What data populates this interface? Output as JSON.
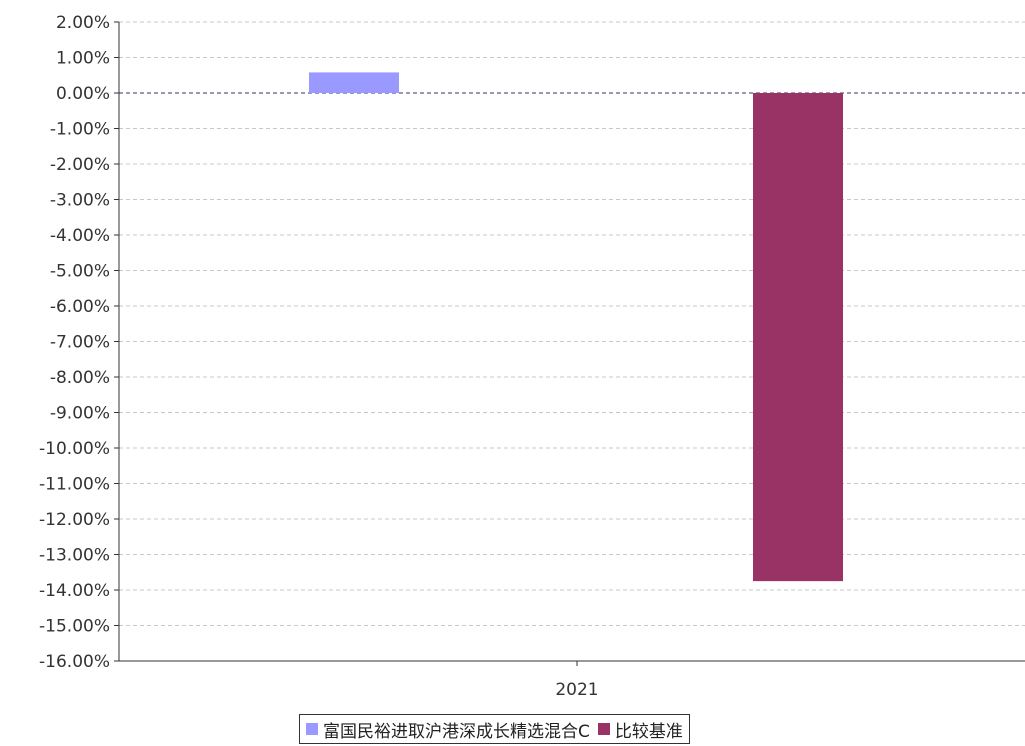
{
  "chart_data": {
    "type": "bar",
    "categories": [
      "2021"
    ],
    "series": [
      {
        "name": "富国民裕进取沪港深成长精选混合C",
        "values": [
          0.58
        ],
        "color": "#9999ff"
      },
      {
        "name": "比较基准",
        "values": [
          -13.75
        ],
        "color": "#993366"
      }
    ],
    "ylim": [
      -16,
      2
    ],
    "yticks": [
      2,
      1,
      0,
      -1,
      -2,
      -3,
      -4,
      -5,
      -6,
      -7,
      -8,
      -9,
      -10,
      -11,
      -12,
      -13,
      -14,
      -15,
      -16
    ],
    "ytick_labels": [
      "2.00%",
      "1.00%",
      "0.00%",
      "-1.00%",
      "-2.00%",
      "-3.00%",
      "-4.00%",
      "-5.00%",
      "-6.00%",
      "-7.00%",
      "-8.00%",
      "-9.00%",
      "-10.00%",
      "-11.00%",
      "-12.00%",
      "-13.00%",
      "-14.00%",
      "-15.00%",
      "-16.00%"
    ],
    "grid": true,
    "legend": "bottom"
  }
}
